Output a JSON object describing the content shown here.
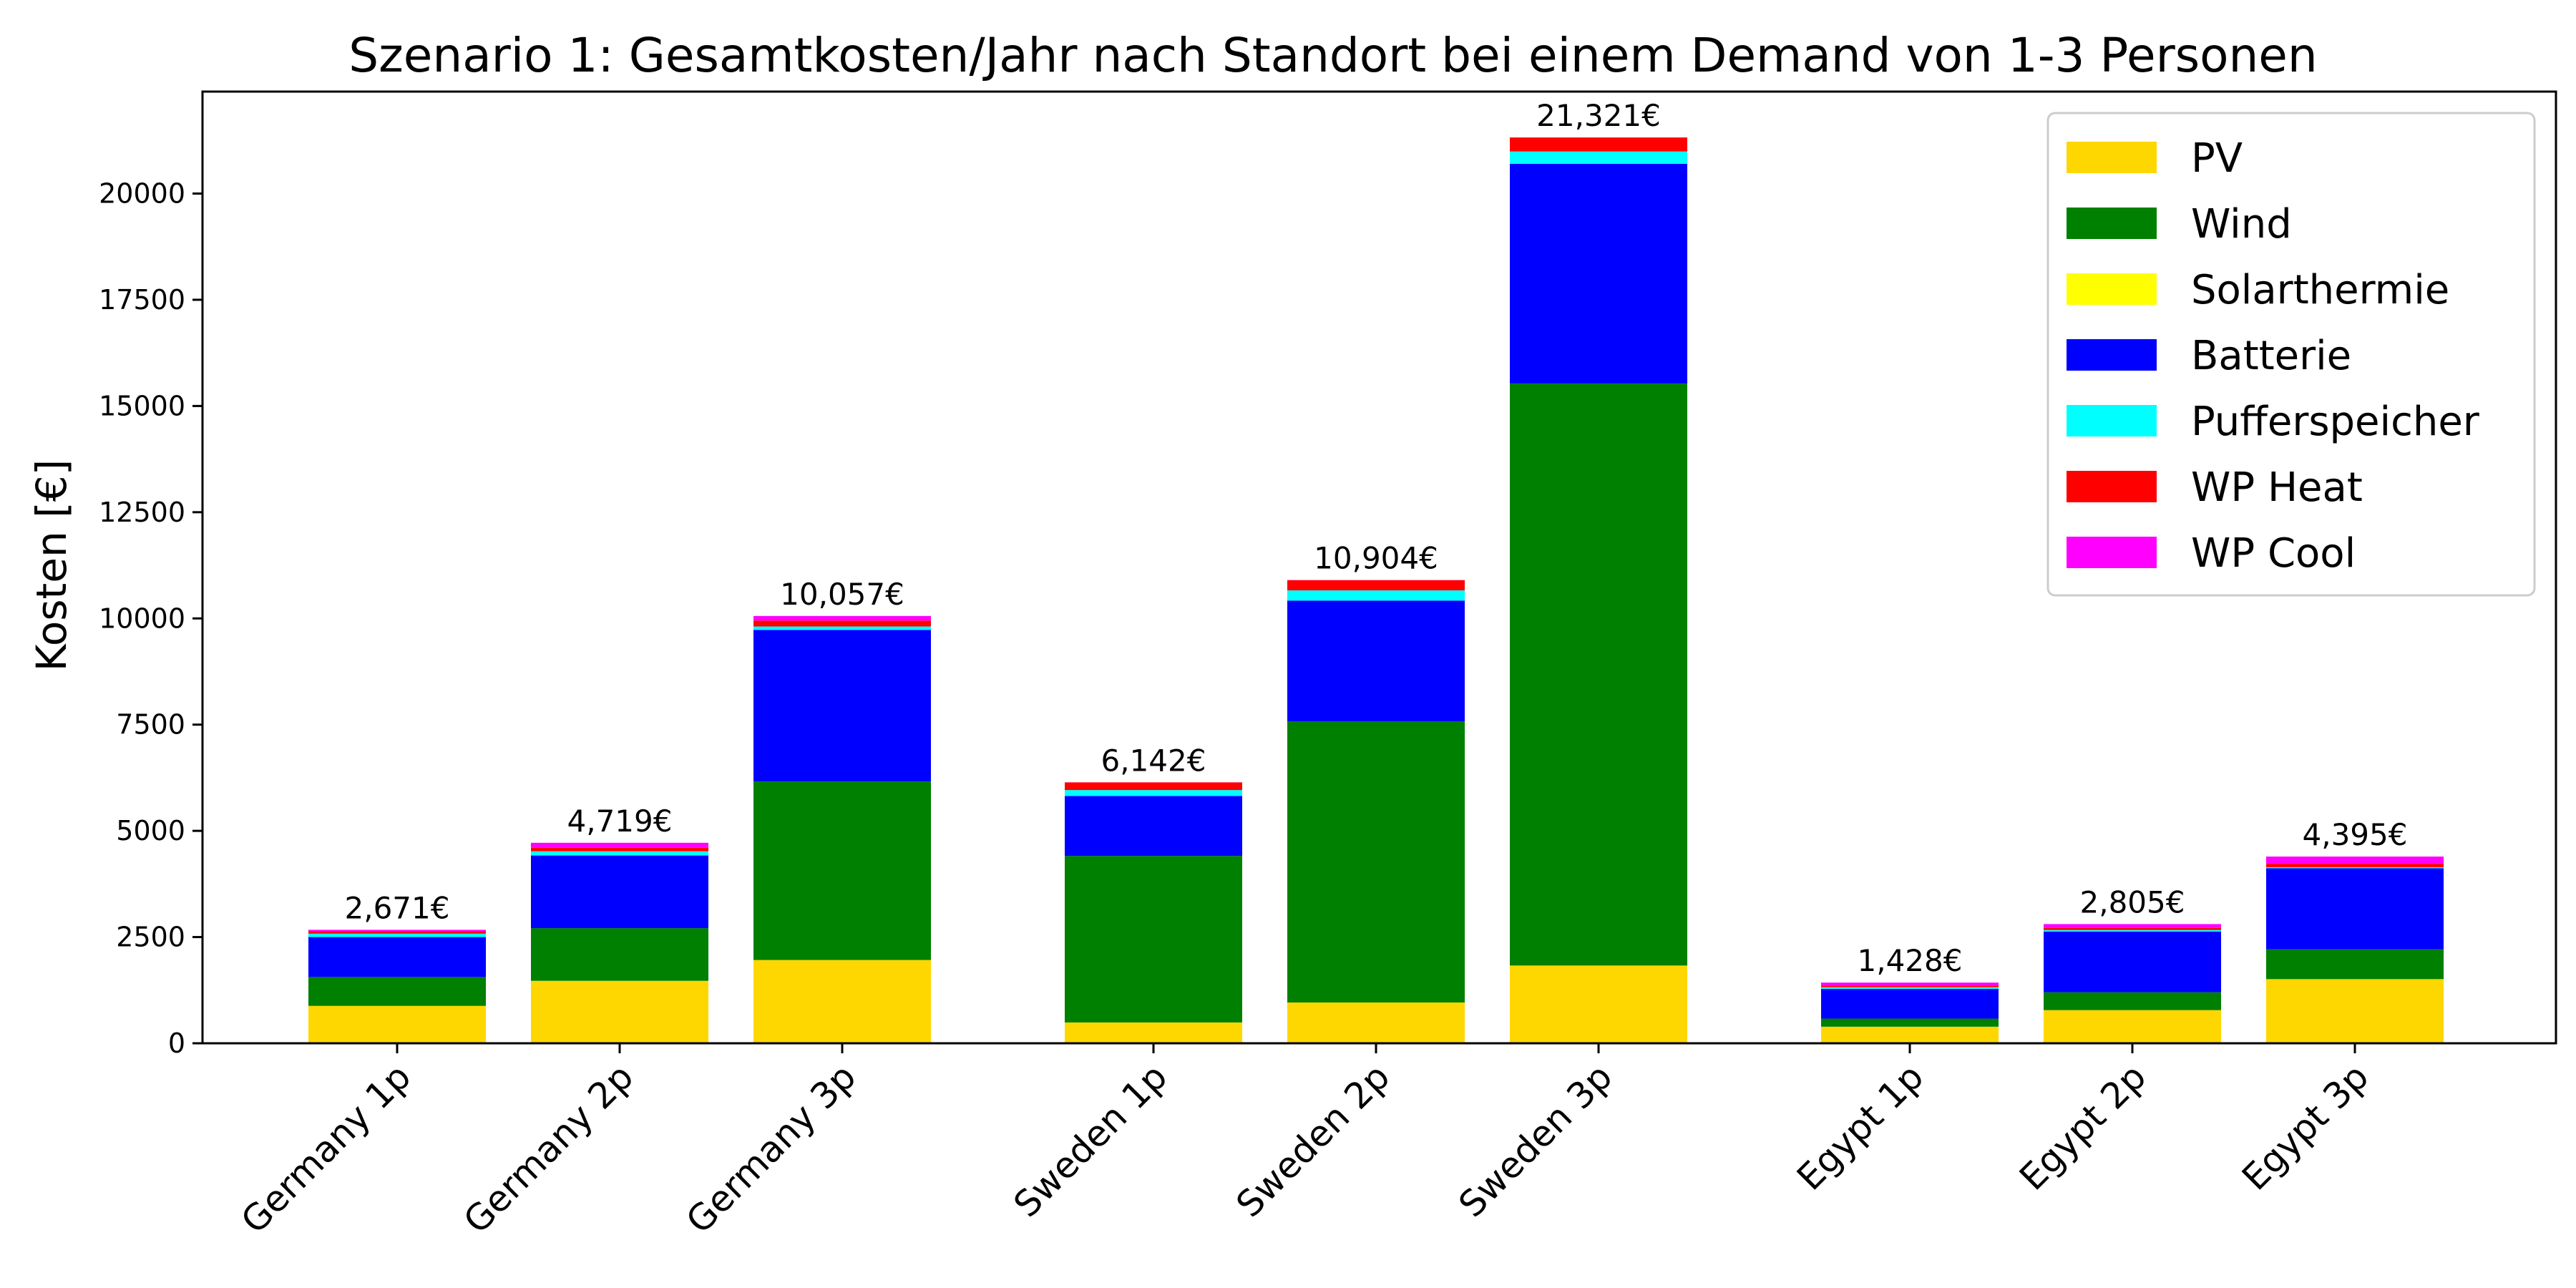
{
  "chart_data": {
    "type": "bar",
    "stacked": true,
    "title": "Szenario 1: Gesamtkosten/Jahr nach Standort bei einem Demand von 1-3 Personen",
    "xlabel": "",
    "ylabel": "Kosten [€]",
    "ylim": [
      0,
      22400
    ],
    "yticks": [
      0,
      2500,
      5000,
      7500,
      10000,
      12500,
      15000,
      17500,
      20000
    ],
    "grid": false,
    "legend_position": "top-right",
    "categories": [
      "Germany 1p",
      "Germany 2p",
      "Germany 3p",
      "Sweden 1p",
      "Sweden 2p",
      "Sweden 3p",
      "Egypt 1p",
      "Egypt 2p",
      "Egypt 3p"
    ],
    "groups": [
      [
        "Germany 1p",
        "Germany 2p",
        "Germany 3p"
      ],
      [
        "Sweden 1p",
        "Sweden 2p",
        "Sweden 3p"
      ],
      [
        "Egypt 1p",
        "Egypt 2p",
        "Egypt 3p"
      ]
    ],
    "totals_labels": [
      "2,671€",
      "4,719€",
      "10,057€",
      "6,142€",
      "10,904€",
      "21,321€",
      "1,428€",
      "2,805€",
      "4,395€"
    ],
    "totals": [
      2671,
      4719,
      10057,
      6142,
      10904,
      21321,
      1428,
      2805,
      4395
    ],
    "series": [
      {
        "name": "PV",
        "color": "#FFD700",
        "values": [
          880,
          1470,
          1960,
          490,
          960,
          1830,
          390,
          780,
          1510
        ]
      },
      {
        "name": "Wind",
        "color": "#008000",
        "values": [
          680,
          1240,
          4200,
          3920,
          6620,
          13700,
          190,
          420,
          700
        ]
      },
      {
        "name": "Solarthermie",
        "color": "#FFFF00",
        "values": [
          0,
          0,
          0,
          0,
          0,
          0,
          0,
          0,
          0
        ]
      },
      {
        "name": "Batterie",
        "color": "#0000FF",
        "values": [
          940,
          1710,
          3570,
          1410,
          2840,
          5170,
          700,
          1430,
          1910
        ]
      },
      {
        "name": "Pufferspeicher",
        "color": "#00FFFF",
        "values": [
          80,
          100,
          80,
          140,
          240,
          290,
          40,
          35,
          25
        ]
      },
      {
        "name": "WP Heat",
        "color": "#FF0000",
        "values": [
          60,
          80,
          140,
          180,
          240,
          330,
          40,
          50,
          80
        ]
      },
      {
        "name": "WP Cool",
        "color": "#FF00FF",
        "values": [
          31,
          119,
          107,
          2,
          4,
          1,
          68,
          90,
          170
        ]
      }
    ]
  }
}
